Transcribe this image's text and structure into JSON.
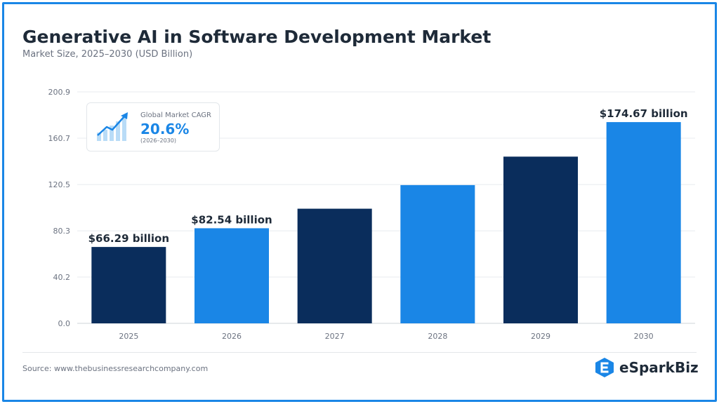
{
  "header": {
    "title": "Generative AI in Software Development Market",
    "subtitle": "Market Size, 2025–2030 (USD Billion)"
  },
  "callout": {
    "label": "Global Market CAGR",
    "value": "20.6%",
    "period": "(2026–2030)",
    "icon": "growth-chart-icon"
  },
  "footer": {
    "source": "Source: www.thebusinessresearchcompany.com",
    "brand": "eSparkBiz",
    "brand_icon": "esparkbiz-logo-icon"
  },
  "colors": {
    "dark_bar": "#0a2d5c",
    "light_bar": "#1a86e6",
    "accent": "#1a86e6",
    "border": "#1a86e6"
  },
  "chart_data": {
    "type": "bar",
    "categories": [
      "2025",
      "2026",
      "2027",
      "2028",
      "2029",
      "2030"
    ],
    "values": [
      66.29,
      82.54,
      99.5,
      120.0,
      144.7,
      174.67
    ],
    "bar_colors": [
      "#0a2d5c",
      "#1a86e6",
      "#0a2d5c",
      "#1a86e6",
      "#0a2d5c",
      "#1a86e6"
    ],
    "data_labels": [
      "$66.29 billion",
      "$82.54 billion",
      "",
      "",
      "",
      "$174.67 billion"
    ],
    "yticks": [
      "0.0",
      "40.2",
      "80.3",
      "120.5",
      "160.7",
      "200.9"
    ],
    "ytick_values": [
      0,
      40.2,
      80.3,
      120.5,
      160.7,
      200.9
    ],
    "ylim": [
      0,
      200.9
    ],
    "grid": true,
    "title": "Generative AI in Software Development Market",
    "subtitle": "Market Size, 2025–2030 (USD Billion)",
    "xlabel": "",
    "ylabel": ""
  }
}
